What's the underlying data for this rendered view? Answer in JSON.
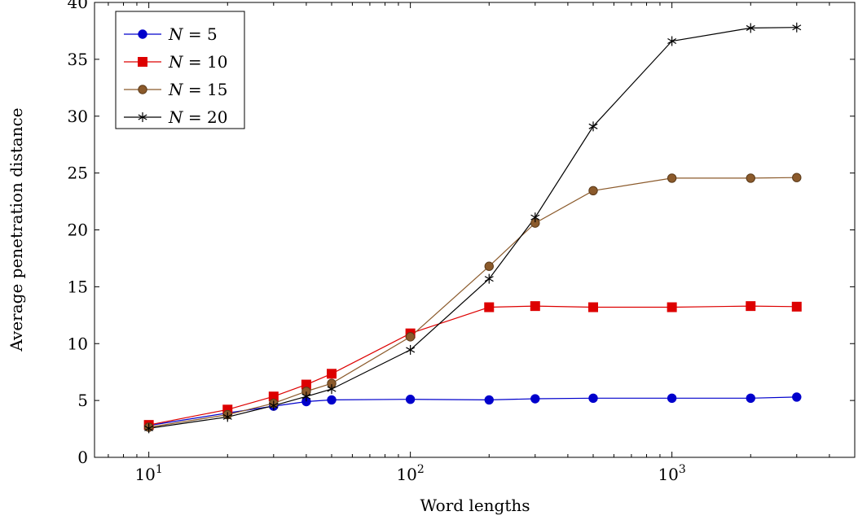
{
  "chart_data": {
    "type": "line",
    "title": "",
    "xlabel": "Word lengths",
    "ylabel": "Average penetration distance",
    "xscale": "log",
    "xlim": [
      6.2,
      5000
    ],
    "ylim": [
      0,
      40
    ],
    "x_ticks": [
      {
        "value": 10,
        "base": "10",
        "exp": "1"
      },
      {
        "value": 100,
        "base": "10",
        "exp": "2"
      },
      {
        "value": 1000,
        "base": "10",
        "exp": "3"
      }
    ],
    "y_ticks": [
      0,
      5,
      10,
      15,
      20,
      25,
      30,
      35,
      40
    ],
    "legend_position": "top-left",
    "x": [
      10,
      20,
      30,
      40,
      50,
      100,
      200,
      300,
      500,
      1000,
      2000,
      3000
    ],
    "series": [
      {
        "name": "N = 5",
        "legend_var": "N",
        "legend_val": "5",
        "color": "#0000cc",
        "marker": "circle",
        "values": [
          2.8,
          3.9,
          4.5,
          4.9,
          5.05,
          5.1,
          5.05,
          5.15,
          5.2,
          5.2,
          5.2,
          5.3
        ]
      },
      {
        "name": "N = 10",
        "legend_var": "N",
        "legend_val": "10",
        "color": "#dd0000",
        "marker": "square",
        "values": [
          2.85,
          4.2,
          5.35,
          6.4,
          7.35,
          10.9,
          13.2,
          13.3,
          13.2,
          13.2,
          13.3,
          13.25
        ]
      },
      {
        "name": "N = 15",
        "legend_var": "N",
        "legend_val": "15",
        "color": "#8b5a2b",
        "marker": "circle",
        "values": [
          2.65,
          3.75,
          4.75,
          5.8,
          6.5,
          10.6,
          16.8,
          20.6,
          23.45,
          24.55,
          24.55,
          24.6
        ]
      },
      {
        "name": "N = 20",
        "legend_var": "N",
        "legend_val": "20",
        "color": "#000000",
        "marker": "star",
        "values": [
          2.55,
          3.55,
          4.55,
          5.35,
          6.0,
          9.45,
          15.7,
          21.1,
          29.1,
          36.6,
          37.75,
          37.8
        ]
      }
    ]
  }
}
